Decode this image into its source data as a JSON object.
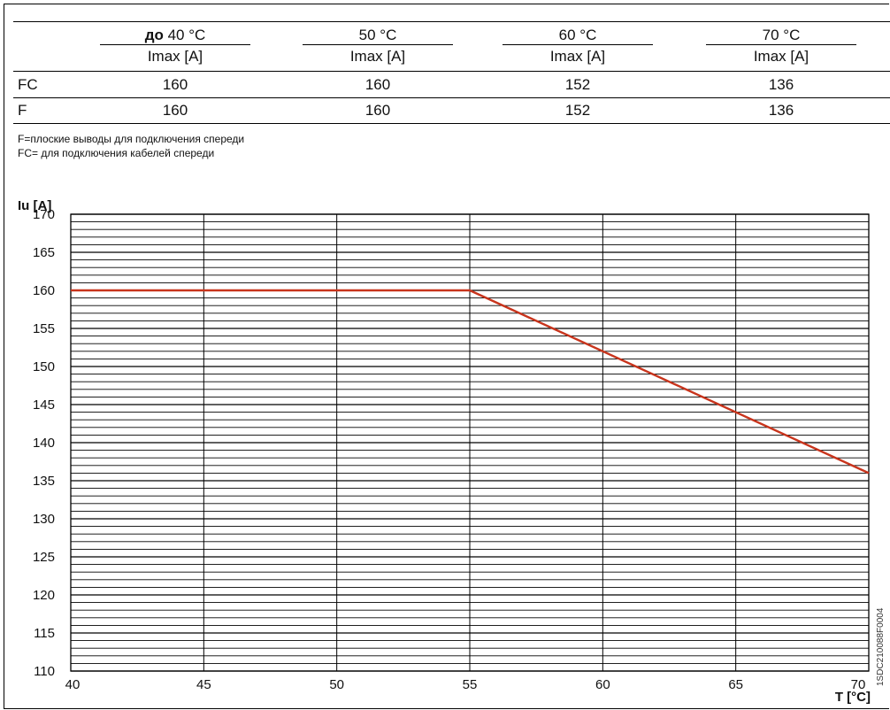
{
  "table": {
    "headers": [
      {
        "prefix": "до",
        "temp": " 40 °C",
        "unit": "Imax [A]"
      },
      {
        "prefix": "",
        "temp": "50 °C",
        "unit": "Imax [A]"
      },
      {
        "prefix": "",
        "temp": "60 °C",
        "unit": "Imax [A]"
      },
      {
        "prefix": "",
        "temp": "70 °C",
        "unit": "Imax [A]"
      }
    ],
    "rows": [
      {
        "label": "FC",
        "values": [
          "160",
          "160",
          "152",
          "136"
        ]
      },
      {
        "label": "F",
        "values": [
          "160",
          "160",
          "152",
          "136"
        ]
      }
    ]
  },
  "notes": [
    "F=плоские выводы для подключения спереди",
    "FC= для подключения кабелей спереди"
  ],
  "code": "1SDC210088F0004",
  "chart_data": {
    "type": "line",
    "ylabel": "Iu [A]",
    "xlabel": "T [°C]",
    "xlim": [
      40,
      70
    ],
    "ylim": [
      110,
      170
    ],
    "x_ticks": [
      "40",
      "45",
      "50",
      "55",
      "60",
      "65",
      "70"
    ],
    "y_ticks": [
      "110",
      "115",
      "120",
      "125",
      "130",
      "135",
      "140",
      "145",
      "150",
      "155",
      "160",
      "165",
      "170"
    ],
    "series": [
      {
        "x": [
          40,
          55,
          70
        ],
        "y": [
          160,
          160,
          136
        ],
        "color": "#c8341c"
      }
    ],
    "grid": true
  }
}
